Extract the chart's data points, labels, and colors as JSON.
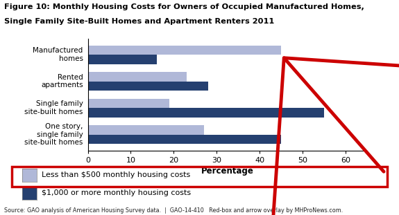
{
  "title_line1": "Figure 10: Monthly Housing Costs for Owners of Occupied Manufactured Homes,",
  "title_line2": "Single Family Site-Built Homes and Apartment Renters 2011",
  "categories": [
    "Manufactured\nhomes",
    "Rented\napartments",
    "Single family\nsite-built homes",
    "One story,\nsingle family\nsite-built homes"
  ],
  "less_than_500": [
    45,
    23,
    19,
    27
  ],
  "1000_or_more": [
    16,
    28,
    55,
    45
  ],
  "color_light": "#b0b8d8",
  "color_dark": "#254070",
  "xlabel": "Percentage",
  "xlim": [
    0,
    65
  ],
  "xticks": [
    0,
    10,
    20,
    30,
    40,
    50,
    60
  ],
  "legend_label_light": "Less than $500 monthly housing costs",
  "legend_label_dark": "$1,000 or more monthly housing costs",
  "source_text": "Source: GAO analysis of American Housing Survey data.  |  GAO-14-410   Red-box and arrow overlay by MHProNews.com.",
  "red_box_color": "#cc0000",
  "arrow_color": "#cc0000",
  "background": "#ffffff"
}
